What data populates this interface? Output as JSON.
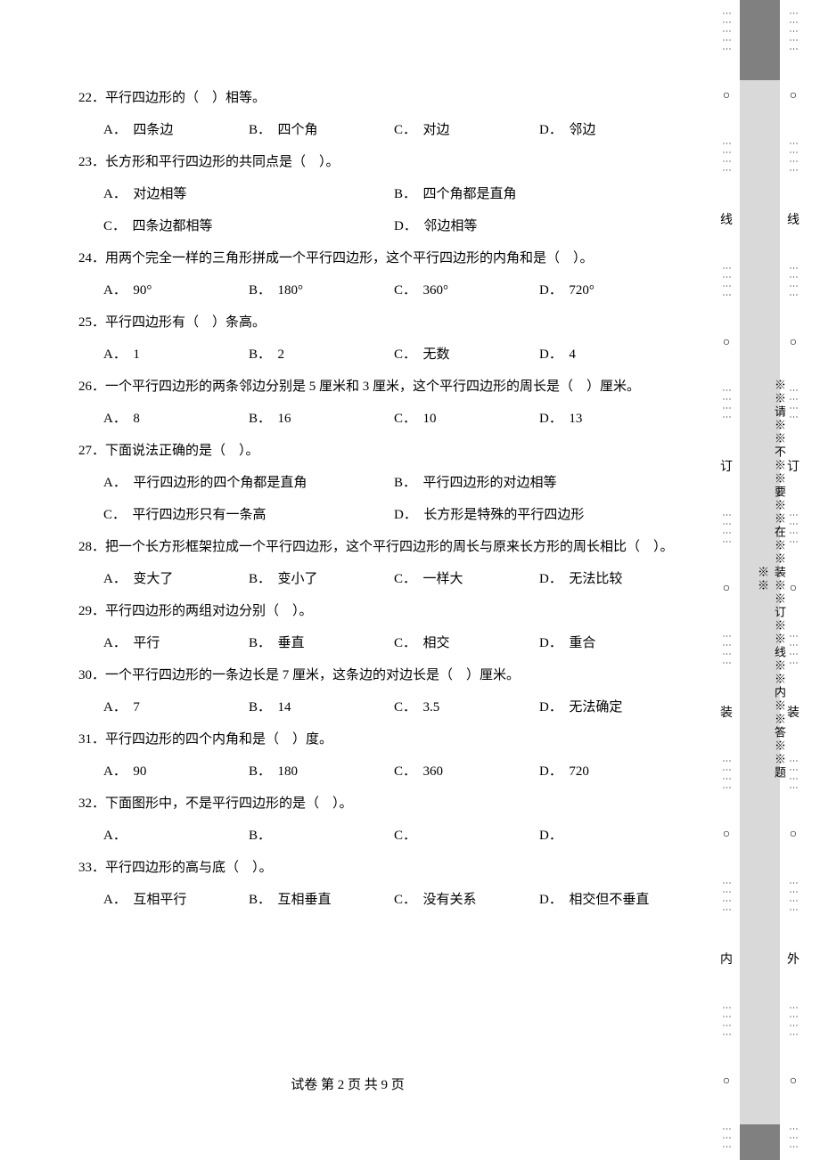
{
  "questions": [
    {
      "num": "22",
      "text": "．平行四边形的（　）相等。",
      "layout": "four",
      "opts": {
        "A": "四条边",
        "B": "四个角",
        "C": "对边",
        "D": "邻边"
      }
    },
    {
      "num": "23",
      "text": "．长方形和平行四边形的共同点是（　）。",
      "layout": "two",
      "opts": {
        "A": "对边相等",
        "B": "四个角都是直角",
        "C": "四条边都相等",
        "D": "邻边相等"
      }
    },
    {
      "num": "24",
      "text": "．用两个完全一样的三角形拼成一个平行四边形，这个平行四边形的内角和是（　）。",
      "layout": "four",
      "opts": {
        "A": "90°",
        "B": "180°",
        "C": "360°",
        "D": "720°"
      }
    },
    {
      "num": "25",
      "text": "．平行四边形有（　）条高。",
      "layout": "four",
      "opts": {
        "A": "1",
        "B": "2",
        "C": "无数",
        "D": "4"
      }
    },
    {
      "num": "26",
      "text": "．一个平行四边形的两条邻边分别是 5 厘米和 3 厘米，这个平行四边形的周长是（　）厘米。",
      "layout": "four",
      "opts": {
        "A": "8",
        "B": "16",
        "C": "10",
        "D": "13"
      }
    },
    {
      "num": "27",
      "text": "．下面说法正确的是（　）。",
      "layout": "two",
      "opts": {
        "A": "平行四边形的四个角都是直角",
        "B": "平行四边形的对边相等",
        "C": "平行四边形只有一条高",
        "D": "长方形是特殊的平行四边形"
      }
    },
    {
      "num": "28",
      "text": "．把一个长方形框架拉成一个平行四边形，这个平行四边形的周长与原来长方形的周长相比（　）。",
      "layout": "four",
      "opts": {
        "A": "变大了",
        "B": "变小了",
        "C": "一样大",
        "D": "无法比较"
      }
    },
    {
      "num": "29",
      "text": "．平行四边形的两组对边分别（　）。",
      "layout": "four",
      "opts": {
        "A": "平行",
        "B": "垂直",
        "C": "相交",
        "D": "重合"
      }
    },
    {
      "num": "30",
      "text": "．一个平行四边形的一条边长是 7 厘米，这条边的对边长是（　）厘米。",
      "layout": "four",
      "opts": {
        "A": "7",
        "B": "14",
        "C": "3.5",
        "D": "无法确定"
      }
    },
    {
      "num": "31",
      "text": "．平行四边形的四个内角和是（　）度。",
      "layout": "four",
      "opts": {
        "A": "90",
        "B": "180",
        "C": "360",
        "D": "720"
      }
    },
    {
      "num": "32",
      "text": "．下面图形中，不是平行四边形的是（　）。",
      "layout": "four",
      "opts": {
        "A": "",
        "B": "",
        "C": "",
        "D": ""
      }
    },
    {
      "num": "33",
      "text": "．平行四边形的高与底（　）。",
      "layout": "four",
      "opts": {
        "A": "互相平行",
        "B": "互相垂直",
        "C": "没有关系",
        "D": "相交但不垂直"
      }
    }
  ],
  "footer": "试卷 第 2 页 共 9 页",
  "binding_note": "※※请※※不※※要※※在※※装※※订※※线※※内※※答※※题※※",
  "strip1_chars": [
    "线",
    "订",
    "装",
    "内"
  ],
  "strip2_chars": [
    "线",
    "订",
    "装",
    "外"
  ]
}
